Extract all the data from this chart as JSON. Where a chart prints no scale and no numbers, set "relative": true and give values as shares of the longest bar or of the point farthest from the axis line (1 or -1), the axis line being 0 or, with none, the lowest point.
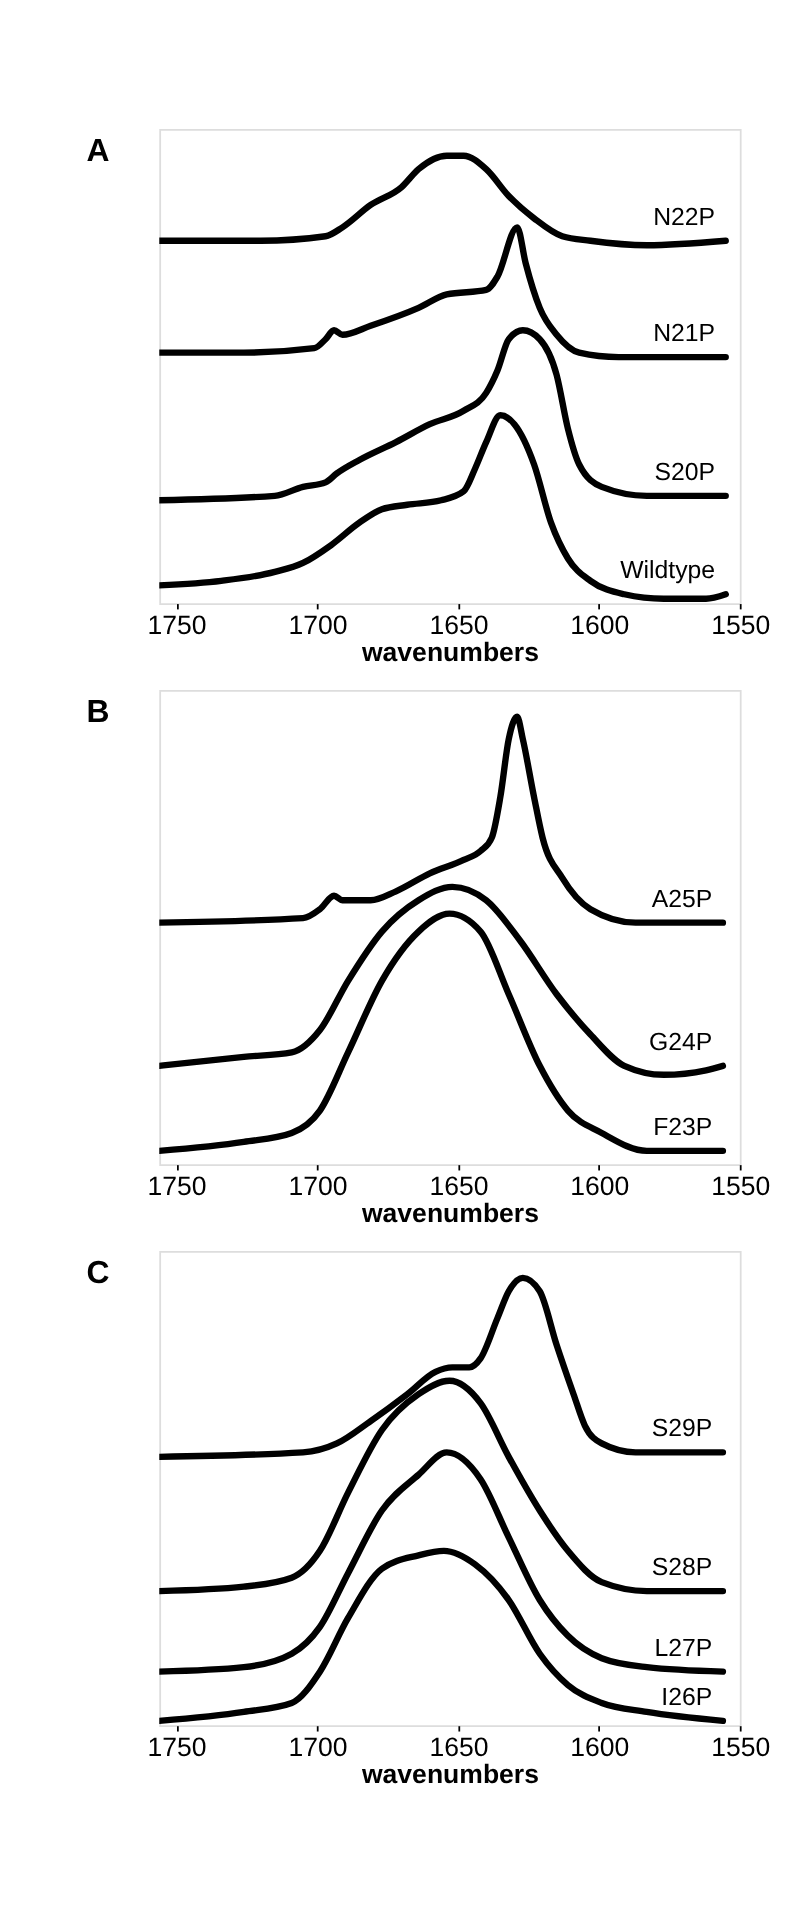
{
  "chart_data": [
    {
      "type": "line",
      "title": "A",
      "xlabel": "wavenumbers",
      "xlim": [
        1756,
        1550
      ],
      "xticks": [
        1750,
        1700,
        1650,
        1600,
        1550
      ],
      "relative": true,
      "tick_labels": "x",
      "grid": false,
      "line_style": "solid",
      "marker": "none",
      "series": [
        {
          "name": "N22P",
          "color": "#000000",
          "x": [
            1756,
            1720,
            1697,
            1691,
            1681,
            1670,
            1664,
            1654,
            1648,
            1640,
            1632,
            1623,
            1613,
            1603,
            1583,
            1555
          ],
          "values": [
            0.81,
            0.81,
            0.82,
            0.84,
            0.89,
            0.93,
            0.97,
            1.0,
            1.0,
            0.97,
            0.91,
            0.86,
            0.82,
            0.81,
            0.8,
            0.81
          ]
        },
        {
          "name": "N21P",
          "color": "#000000",
          "x": [
            1756,
            1726,
            1701,
            1697,
            1694,
            1691,
            1681,
            1664,
            1654,
            1640,
            1636,
            1629,
            1626,
            1621,
            1615,
            1607,
            1593,
            1555
          ],
          "values": [
            0.56,
            0.56,
            0.57,
            0.59,
            0.61,
            0.6,
            0.62,
            0.66,
            0.69,
            0.7,
            0.73,
            0.84,
            0.76,
            0.66,
            0.6,
            0.56,
            0.55,
            0.55
          ]
        },
        {
          "name": "S20P",
          "color": "#000000",
          "x": [
            1756,
            1715,
            1705,
            1697,
            1693,
            1685,
            1672,
            1660,
            1648,
            1640,
            1636,
            1632,
            1627,
            1621,
            1615,
            1611,
            1607,
            1599,
            1583,
            1555
          ],
          "values": [
            0.23,
            0.24,
            0.26,
            0.27,
            0.29,
            0.32,
            0.36,
            0.4,
            0.43,
            0.47,
            0.52,
            0.59,
            0.61,
            0.59,
            0.51,
            0.39,
            0.31,
            0.26,
            0.24,
            0.24
          ]
        },
        {
          "name": "Wildtype",
          "color": "#000000",
          "x": [
            1756,
            1734,
            1715,
            1705,
            1695,
            1685,
            1677,
            1668,
            1656,
            1648,
            1644,
            1640,
            1635,
            1630,
            1623,
            1617,
            1611,
            1603,
            1591,
            1577,
            1562,
            1555
          ],
          "values": [
            0.04,
            0.05,
            0.07,
            0.09,
            0.13,
            0.18,
            0.21,
            0.22,
            0.23,
            0.25,
            0.3,
            0.36,
            0.42,
            0.4,
            0.31,
            0.18,
            0.1,
            0.05,
            0.02,
            0.01,
            0.01,
            0.02
          ]
        }
      ]
    },
    {
      "type": "line",
      "title": "B",
      "xlabel": "wavenumbers",
      "xlim": [
        1756,
        1550
      ],
      "xticks": [
        1750,
        1700,
        1650,
        1600,
        1550
      ],
      "relative": true,
      "tick_labels": "x",
      "grid": false,
      "line_style": "solid",
      "marker": "none",
      "series": [
        {
          "name": "A25P",
          "color": "#000000",
          "x": [
            1756,
            1705,
            1699,
            1694,
            1691,
            1681,
            1672,
            1660,
            1648,
            1642,
            1638,
            1635,
            1632,
            1629,
            1627,
            1623,
            1620,
            1613,
            1603,
            1587,
            1556
          ],
          "values": [
            0.54,
            0.55,
            0.57,
            0.6,
            0.59,
            0.59,
            0.61,
            0.65,
            0.68,
            0.7,
            0.73,
            0.82,
            0.95,
            1.0,
            0.95,
            0.82,
            0.73,
            0.64,
            0.57,
            0.54,
            0.54
          ]
        },
        {
          "name": "G24P",
          "color": "#000000",
          "x": [
            1756,
            1726,
            1709,
            1699,
            1689,
            1677,
            1664,
            1652,
            1640,
            1628,
            1615,
            1603,
            1591,
            1577,
            1562,
            1556
          ],
          "values": [
            0.22,
            0.24,
            0.25,
            0.3,
            0.41,
            0.52,
            0.59,
            0.62,
            0.59,
            0.5,
            0.38,
            0.29,
            0.22,
            0.2,
            0.21,
            0.22
          ]
        },
        {
          "name": "F23P",
          "color": "#000000",
          "x": [
            1756,
            1726,
            1709,
            1699,
            1689,
            1677,
            1664,
            1653,
            1642,
            1632,
            1621,
            1611,
            1599,
            1583,
            1556
          ],
          "values": [
            0.03,
            0.05,
            0.07,
            0.12,
            0.25,
            0.41,
            0.52,
            0.56,
            0.52,
            0.38,
            0.22,
            0.12,
            0.07,
            0.03,
            0.03
          ]
        }
      ]
    },
    {
      "type": "line",
      "title": "C",
      "xlabel": "wavenumbers",
      "xlim": [
        1756,
        1550
      ],
      "xticks": [
        1750,
        1700,
        1650,
        1600,
        1550
      ],
      "relative": true,
      "tick_labels": "x",
      "grid": false,
      "line_style": "solid",
      "marker": "none",
      "series": [
        {
          "name": "S29P",
          "color": "#000000",
          "x": [
            1756,
            1705,
            1693,
            1681,
            1668,
            1658,
            1652,
            1646,
            1642,
            1636,
            1632,
            1627,
            1621,
            1615,
            1609,
            1605,
            1599,
            1587,
            1556
          ],
          "values": [
            0.6,
            0.61,
            0.63,
            0.68,
            0.74,
            0.79,
            0.8,
            0.8,
            0.82,
            0.91,
            0.97,
            1.0,
            0.97,
            0.85,
            0.74,
            0.67,
            0.63,
            0.61,
            0.61
          ]
        },
        {
          "name": "S28P",
          "color": "#000000",
          "x": [
            1756,
            1726,
            1709,
            1699,
            1689,
            1677,
            1664,
            1653,
            1642,
            1632,
            1621,
            1611,
            1599,
            1583,
            1556
          ],
          "values": [
            0.3,
            0.31,
            0.33,
            0.39,
            0.52,
            0.66,
            0.74,
            0.77,
            0.72,
            0.6,
            0.48,
            0.39,
            0.32,
            0.3,
            0.3
          ]
        },
        {
          "name": "L27P",
          "color": "#000000",
          "x": [
            1756,
            1726,
            1709,
            1699,
            1689,
            1677,
            1664,
            1654,
            1642,
            1632,
            1621,
            1611,
            1599,
            1583,
            1556
          ],
          "values": [
            0.12,
            0.13,
            0.16,
            0.22,
            0.34,
            0.48,
            0.56,
            0.61,
            0.55,
            0.42,
            0.28,
            0.2,
            0.15,
            0.13,
            0.12
          ]
        },
        {
          "name": "I26P",
          "color": "#000000",
          "x": [
            1756,
            1726,
            1709,
            1699,
            1689,
            1677,
            1664,
            1655,
            1644,
            1632,
            1621,
            1611,
            1599,
            1583,
            1556
          ],
          "values": [
            0.01,
            0.03,
            0.05,
            0.12,
            0.24,
            0.35,
            0.38,
            0.39,
            0.36,
            0.28,
            0.16,
            0.09,
            0.05,
            0.03,
            0.01
          ]
        }
      ]
    }
  ]
}
